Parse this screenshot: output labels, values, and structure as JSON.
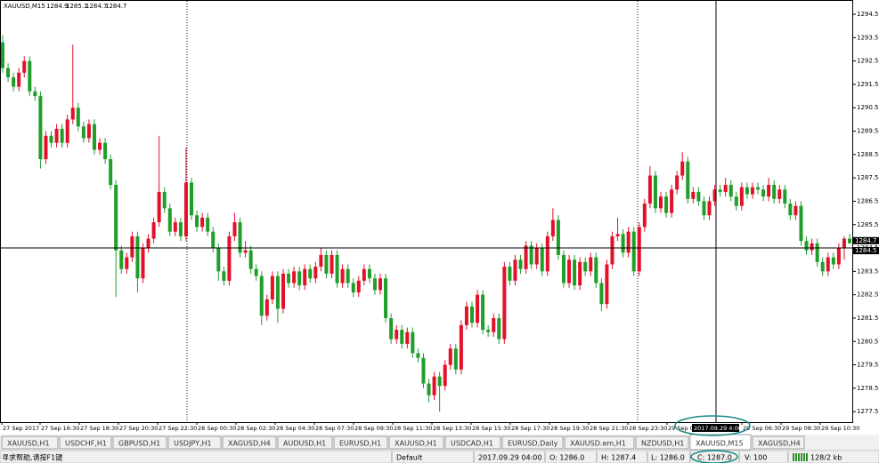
{
  "chart_data": {
    "type": "candlestick",
    "title": "XAUUSD,M15",
    "header_values": [
      1284.9,
      1285.1,
      1284.7,
      1284.7
    ],
    "up_color": "#e3102a",
    "down_color": "#1f9e2a",
    "ylim": [
      1277.05,
      1295.11
    ],
    "yticks": [
      1294.5,
      1293.5,
      1292.5,
      1291.5,
      1290.5,
      1289.5,
      1288.5,
      1287.5,
      1286.5,
      1285.5,
      1284.5,
      1283.5,
      1282.5,
      1281.5,
      1280.5,
      1279.5,
      1278.5,
      1277.5
    ],
    "price_labels": [
      1284.7,
      1284.5
    ],
    "crosshair": {
      "price": 1284.5,
      "time": "2017.09.29 4:00"
    },
    "x_labels": [
      "27 Sep 2017",
      "27 Sep 16:30",
      "27 Sep 18:30",
      "27 Sep 20:30",
      "27 Sep 22:30",
      "28 Sep 00:30",
      "28 Sep 02:30",
      "28 Sep 04:30",
      "28 Sep 07:30",
      "28 Sep 09:30",
      "28 Sep 11:30",
      "28 Sep 13:30",
      "28 Sep 15:30",
      "28 Sep 17:30",
      "28 Sep 19:30",
      "28 Sep 21:30",
      "28 Sep 23:30",
      "29 Sep 01",
      "29 Sep 06:30",
      "29 Sep 08:30",
      "29 Sep 10:30"
    ],
    "ohlc": [
      [
        1293.3,
        1293.6,
        1292.0,
        1292.2
      ],
      [
        1292.2,
        1292.4,
        1291.6,
        1291.8
      ],
      [
        1291.8,
        1292.0,
        1291.2,
        1291.4
      ],
      [
        1291.4,
        1292.2,
        1291.2,
        1292.0
      ],
      [
        1292.0,
        1292.7,
        1291.8,
        1292.5
      ],
      [
        1292.5,
        1292.7,
        1291.0,
        1291.2
      ],
      [
        1291.2,
        1291.4,
        1290.8,
        1291.0
      ],
      [
        1291.0,
        1291.2,
        1287.9,
        1288.3
      ],
      [
        1288.3,
        1289.5,
        1288.1,
        1289.3
      ],
      [
        1289.3,
        1289.5,
        1288.8,
        1289.0
      ],
      [
        1289.0,
        1289.8,
        1288.8,
        1289.6
      ],
      [
        1289.6,
        1289.8,
        1288.8,
        1289.0
      ],
      [
        1289.0,
        1290.2,
        1288.8,
        1290.0
      ],
      [
        1290.0,
        1293.2,
        1289.8,
        1290.5
      ],
      [
        1290.5,
        1290.7,
        1289.5,
        1289.7
      ],
      [
        1289.7,
        1289.9,
        1289.0,
        1289.2
      ],
      [
        1289.2,
        1290.0,
        1289.0,
        1289.8
      ],
      [
        1289.8,
        1290.0,
        1288.5,
        1288.7
      ],
      [
        1288.7,
        1289.2,
        1288.5,
        1289.0
      ],
      [
        1289.0,
        1289.2,
        1288.1,
        1288.3
      ],
      [
        1288.3,
        1288.5,
        1287.0,
        1287.2
      ],
      [
        1287.2,
        1287.4,
        1282.4,
        1284.4
      ],
      [
        1284.4,
        1284.6,
        1283.4,
        1283.6
      ],
      [
        1283.6,
        1284.3,
        1283.4,
        1284.1
      ],
      [
        1284.1,
        1285.2,
        1283.9,
        1285.0
      ],
      [
        1285.0,
        1285.2,
        1282.6,
        1283.2
      ],
      [
        1283.2,
        1284.7,
        1283.0,
        1284.5
      ],
      [
        1284.5,
        1285.1,
        1284.3,
        1284.9
      ],
      [
        1284.9,
        1285.8,
        1284.7,
        1285.6
      ],
      [
        1285.6,
        1289.3,
        1285.4,
        1286.9
      ],
      [
        1286.9,
        1287.1,
        1286.0,
        1286.2
      ],
      [
        1286.2,
        1286.4,
        1285.0,
        1285.2
      ],
      [
        1285.2,
        1285.8,
        1285.0,
        1285.6
      ],
      [
        1285.6,
        1285.8,
        1284.8,
        1285.0
      ],
      [
        1285.0,
        1288.8,
        1284.8,
        1287.3
      ],
      [
        1287.3,
        1287.5,
        1285.7,
        1285.9
      ],
      [
        1285.9,
        1286.1,
        1285.2,
        1285.4
      ],
      [
        1285.4,
        1286.0,
        1285.2,
        1285.8
      ],
      [
        1285.8,
        1286.0,
        1285.0,
        1285.2
      ],
      [
        1285.2,
        1285.4,
        1284.3,
        1284.5
      ],
      [
        1284.5,
        1284.7,
        1283.1,
        1283.5
      ],
      [
        1283.5,
        1283.7,
        1282.9,
        1283.1
      ],
      [
        1283.1,
        1285.2,
        1282.9,
        1285.0
      ],
      [
        1285.0,
        1286.0,
        1284.8,
        1285.6
      ],
      [
        1285.6,
        1285.8,
        1284.1,
        1284.3
      ],
      [
        1284.3,
        1284.8,
        1284.1,
        1284.4
      ],
      [
        1284.4,
        1284.6,
        1283.4,
        1283.6
      ],
      [
        1283.6,
        1283.8,
        1283.1,
        1283.3
      ],
      [
        1283.3,
        1283.5,
        1281.2,
        1281.6
      ],
      [
        1281.6,
        1282.5,
        1281.4,
        1282.3
      ],
      [
        1282.3,
        1283.5,
        1282.1,
        1283.3
      ],
      [
        1283.3,
        1283.5,
        1281.3,
        1281.9
      ],
      [
        1281.9,
        1283.6,
        1281.7,
        1283.4
      ],
      [
        1283.4,
        1283.6,
        1282.8,
        1283.0
      ],
      [
        1283.0,
        1283.7,
        1282.8,
        1283.5
      ],
      [
        1283.5,
        1283.7,
        1282.7,
        1282.9
      ],
      [
        1282.9,
        1283.8,
        1282.7,
        1283.6
      ],
      [
        1283.6,
        1283.8,
        1283.0,
        1283.2
      ],
      [
        1283.2,
        1283.9,
        1283.0,
        1283.7
      ],
      [
        1283.7,
        1284.5,
        1283.5,
        1284.2
      ],
      [
        1284.2,
        1284.4,
        1283.2,
        1283.4
      ],
      [
        1283.4,
        1284.4,
        1283.2,
        1284.2
      ],
      [
        1284.2,
        1284.4,
        1282.8,
        1283.0
      ],
      [
        1283.0,
        1283.8,
        1282.8,
        1283.6
      ],
      [
        1283.6,
        1283.8,
        1282.8,
        1283.0
      ],
      [
        1283.0,
        1283.2,
        1282.4,
        1282.6
      ],
      [
        1282.6,
        1283.3,
        1282.4,
        1283.1
      ],
      [
        1283.1,
        1283.8,
        1282.9,
        1283.6
      ],
      [
        1283.6,
        1283.8,
        1283.0,
        1283.2
      ],
      [
        1283.2,
        1283.4,
        1282.5,
        1282.7
      ],
      [
        1282.7,
        1283.4,
        1282.5,
        1283.2
      ],
      [
        1283.2,
        1283.4,
        1281.3,
        1281.5
      ],
      [
        1281.5,
        1281.7,
        1280.4,
        1280.6
      ],
      [
        1280.6,
        1281.2,
        1280.4,
        1281.0
      ],
      [
        1281.0,
        1281.2,
        1280.2,
        1280.4
      ],
      [
        1280.4,
        1281.1,
        1280.2,
        1280.9
      ],
      [
        1280.9,
        1281.1,
        1279.8,
        1280.0
      ],
      [
        1280.0,
        1280.2,
        1279.6,
        1279.8
      ],
      [
        1279.8,
        1280.0,
        1278.5,
        1278.7
      ],
      [
        1278.7,
        1278.9,
        1277.9,
        1278.2
      ],
      [
        1278.2,
        1279.2,
        1278.0,
        1279.0
      ],
      [
        1279.0,
        1279.2,
        1277.5,
        1278.6
      ],
      [
        1278.6,
        1279.7,
        1278.4,
        1279.5
      ],
      [
        1279.5,
        1280.4,
        1279.3,
        1280.2
      ],
      [
        1280.2,
        1280.4,
        1279.1,
        1279.3
      ],
      [
        1279.3,
        1281.4,
        1279.1,
        1281.2
      ],
      [
        1281.2,
        1282.2,
        1281.0,
        1282.0
      ],
      [
        1282.0,
        1282.2,
        1281.1,
        1281.3
      ],
      [
        1281.3,
        1282.7,
        1281.1,
        1282.5
      ],
      [
        1282.5,
        1282.7,
        1280.8,
        1281.0
      ],
      [
        1281.0,
        1281.2,
        1280.7,
        1280.9
      ],
      [
        1280.9,
        1281.7,
        1280.7,
        1281.5
      ],
      [
        1281.5,
        1281.7,
        1280.4,
        1280.6
      ],
      [
        1280.6,
        1283.9,
        1280.4,
        1283.7
      ],
      [
        1283.7,
        1283.9,
        1282.9,
        1283.1
      ],
      [
        1283.1,
        1284.2,
        1282.9,
        1284.0
      ],
      [
        1284.0,
        1284.2,
        1283.4,
        1283.6
      ],
      [
        1283.6,
        1284.8,
        1283.4,
        1284.6
      ],
      [
        1284.6,
        1284.8,
        1283.6,
        1283.8
      ],
      [
        1283.8,
        1284.7,
        1283.6,
        1284.5
      ],
      [
        1284.5,
        1284.7,
        1283.3,
        1283.5
      ],
      [
        1283.5,
        1285.2,
        1283.3,
        1285.0
      ],
      [
        1285.0,
        1286.2,
        1284.8,
        1285.7
      ],
      [
        1285.7,
        1285.9,
        1284.0,
        1284.2
      ],
      [
        1284.2,
        1284.4,
        1282.8,
        1283.0
      ],
      [
        1283.0,
        1284.2,
        1282.8,
        1284.0
      ],
      [
        1284.0,
        1284.2,
        1282.7,
        1282.9
      ],
      [
        1282.9,
        1284.1,
        1282.7,
        1283.9
      ],
      [
        1283.9,
        1284.1,
        1283.3,
        1283.5
      ],
      [
        1283.5,
        1284.3,
        1283.3,
        1284.1
      ],
      [
        1284.1,
        1284.3,
        1282.8,
        1283.0
      ],
      [
        1283.0,
        1283.2,
        1281.8,
        1282.1
      ],
      [
        1282.1,
        1284.0,
        1281.9,
        1283.8
      ],
      [
        1283.8,
        1285.2,
        1283.6,
        1285.0
      ],
      [
        1285.0,
        1285.8,
        1284.8,
        1285.1
      ],
      [
        1285.1,
        1285.3,
        1284.1,
        1284.3
      ],
      [
        1284.3,
        1285.4,
        1284.1,
        1285.2
      ],
      [
        1285.2,
        1285.4,
        1283.3,
        1283.5
      ],
      [
        1283.5,
        1285.6,
        1283.3,
        1285.4
      ],
      [
        1285.4,
        1286.6,
        1285.2,
        1286.4
      ],
      [
        1286.4,
        1288.0,
        1286.2,
        1287.6
      ],
      [
        1287.6,
        1287.8,
        1286.0,
        1286.2
      ],
      [
        1286.2,
        1286.9,
        1286.0,
        1286.7
      ],
      [
        1286.7,
        1286.9,
        1285.8,
        1286.0
      ],
      [
        1286.0,
        1287.2,
        1285.8,
        1287.0
      ],
      [
        1287.0,
        1287.8,
        1286.8,
        1287.6
      ],
      [
        1287.6,
        1288.6,
        1287.4,
        1288.2
      ],
      [
        1288.2,
        1288.4,
        1286.4,
        1286.6
      ],
      [
        1286.6,
        1287.1,
        1286.4,
        1286.9
      ],
      [
        1286.9,
        1287.1,
        1286.3,
        1286.5
      ],
      [
        1286.5,
        1286.7,
        1285.7,
        1285.9
      ],
      [
        1285.9,
        1286.7,
        1285.7,
        1286.5
      ],
      [
        1286.5,
        1287.2,
        1286.3,
        1287.0
      ],
      [
        1287.0,
        1287.2,
        1286.7,
        1286.9
      ],
      [
        1286.9,
        1287.5,
        1286.7,
        1287.2
      ],
      [
        1287.2,
        1287.4,
        1286.5,
        1286.7
      ],
      [
        1286.7,
        1286.9,
        1286.1,
        1286.3
      ],
      [
        1286.3,
        1287.3,
        1286.1,
        1287.1
      ],
      [
        1287.1,
        1287.3,
        1286.6,
        1286.8
      ],
      [
        1286.8,
        1287.3,
        1286.6,
        1287.1
      ],
      [
        1287.1,
        1287.3,
        1286.8,
        1287.0
      ],
      [
        1287.0,
        1287.2,
        1286.5,
        1286.7
      ],
      [
        1286.7,
        1287.5,
        1286.5,
        1287.2
      ],
      [
        1287.2,
        1287.4,
        1286.4,
        1286.6
      ],
      [
        1286.6,
        1287.2,
        1286.4,
        1287.0
      ],
      [
        1287.0,
        1287.2,
        1286.2,
        1286.4
      ],
      [
        1286.4,
        1286.6,
        1285.7,
        1285.9
      ],
      [
        1285.9,
        1286.5,
        1285.7,
        1286.3
      ],
      [
        1286.3,
        1286.5,
        1284.6,
        1284.8
      ],
      [
        1284.8,
        1285.0,
        1284.2,
        1284.4
      ],
      [
        1284.4,
        1284.9,
        1284.2,
        1284.7
      ],
      [
        1284.7,
        1284.9,
        1283.7,
        1283.9
      ],
      [
        1283.9,
        1284.1,
        1283.3,
        1283.5
      ],
      [
        1283.5,
        1284.3,
        1283.3,
        1284.1
      ],
      [
        1284.1,
        1284.3,
        1283.6,
        1283.8
      ],
      [
        1283.8,
        1284.7,
        1283.6,
        1284.5
      ],
      [
        1284.5,
        1285.0,
        1284.0,
        1284.9
      ],
      [
        1284.9,
        1285.1,
        1284.7,
        1284.7
      ]
    ]
  },
  "tabs": [
    "XAUUSD,H1",
    "USDCHF,H1",
    "GBPUSD,H1",
    "USDJPY,H1",
    "XAGUSD,H4",
    "AUDUSD,H1",
    "EURUSD,H1",
    "XAUUSD,H1",
    "USDCAD,H1",
    "EURUSD,Daily",
    "XAUUSD.em,H1",
    "NZDUSD,H1",
    "XAUUSD,M15",
    "XAGUSD,H4"
  ],
  "active_tab": "XAUUSD,M15",
  "status": {
    "help": "寻求帮助,请按F1键",
    "profile": "Default",
    "time": "2017.09.29 04:00",
    "open": "O: 1286.0",
    "high": "H: 1287.4",
    "low": "L: 1286.0",
    "close": "C: 1287.0",
    "volume": "V: 100",
    "traffic": "128/2 kb"
  }
}
